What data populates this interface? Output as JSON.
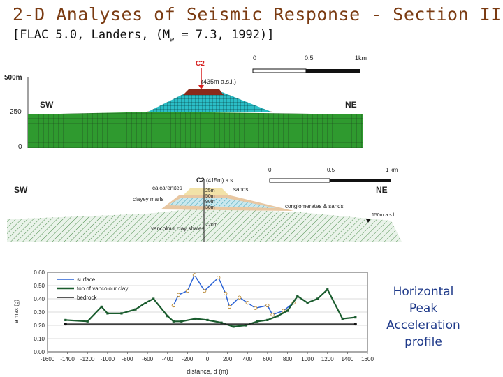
{
  "title": "2-D Analyses of Seismic Response - Section II",
  "subtitle": {
    "prefix": "[FLAC 5.0, Landers, (M",
    "sub": "w",
    "suffix": " = 7.3, 1992)]"
  },
  "section_upper": {
    "station": "C2",
    "elevation": "(435m a.s.l.)",
    "sw": "SW",
    "ne": "NE",
    "y_ticks": [
      "500m",
      "250",
      "0"
    ],
    "scale": [
      "0",
      "0.5",
      "1km"
    ]
  },
  "section_lower": {
    "station": "C2",
    "elevation": "(415m) a.s.l",
    "sw": "SW",
    "ne": "NE",
    "scale": [
      "0",
      "0.5",
      "1 km"
    ],
    "layers": [
      "calcarenites",
      "sands",
      "clayey marls",
      "conglomerates & sands",
      "vancolour clay shales"
    ],
    "depths": [
      "25m",
      "50m",
      "90m",
      "30m",
      "220m"
    ],
    "base_elevation": "150m a.s.l."
  },
  "chart_data": {
    "type": "line",
    "xlabel": "distance, d (m)",
    "ylabel": "a max (g)",
    "xlim": [
      -1600,
      1600
    ],
    "ylim": [
      0.0,
      0.6
    ],
    "x_ticks": [
      "-1600",
      "-1400",
      "-1200",
      "-1000",
      "-800",
      "-600",
      "-400",
      "-200",
      "0",
      "200",
      "400",
      "600",
      "800",
      "1000",
      "1200",
      "1400",
      "1600"
    ],
    "y_ticks": [
      "0.00",
      "0.10",
      "0.20",
      "0.30",
      "0.40",
      "0.50",
      "0.60"
    ],
    "legend_position": "top-left",
    "series": [
      {
        "name": "surface",
        "color": "#2b63d6",
        "points": [
          [
            -340,
            0.35
          ],
          [
            -290,
            0.43
          ],
          [
            -200,
            0.46
          ],
          [
            -130,
            0.58
          ],
          [
            -30,
            0.46
          ],
          [
            110,
            0.56
          ],
          [
            180,
            0.44
          ],
          [
            220,
            0.34
          ],
          [
            320,
            0.41
          ],
          [
            400,
            0.37
          ],
          [
            480,
            0.33
          ],
          [
            600,
            0.35
          ],
          [
            650,
            0.28
          ],
          [
            760,
            0.31
          ],
          [
            860,
            0.37
          ]
        ]
      },
      {
        "name": "top of vancolour clay",
        "color": "#1a5c2e",
        "points": [
          [
            -1420,
            0.24
          ],
          [
            -1200,
            0.23
          ],
          [
            -1060,
            0.34
          ],
          [
            -1000,
            0.29
          ],
          [
            -860,
            0.29
          ],
          [
            -720,
            0.32
          ],
          [
            -620,
            0.37
          ],
          [
            -540,
            0.4
          ],
          [
            -400,
            0.27
          ],
          [
            -340,
            0.23
          ],
          [
            -260,
            0.23
          ],
          [
            -120,
            0.25
          ],
          [
            0,
            0.24
          ],
          [
            140,
            0.22
          ],
          [
            260,
            0.19
          ],
          [
            380,
            0.2
          ],
          [
            500,
            0.23
          ],
          [
            600,
            0.24
          ],
          [
            700,
            0.27
          ],
          [
            800,
            0.31
          ],
          [
            900,
            0.42
          ],
          [
            1000,
            0.37
          ],
          [
            1100,
            0.4
          ],
          [
            1200,
            0.47
          ],
          [
            1350,
            0.25
          ],
          [
            1480,
            0.26
          ]
        ]
      },
      {
        "name": "bedrock",
        "color": "#222222",
        "points": [
          [
            -1420,
            0.21
          ],
          [
            1480,
            0.21
          ]
        ]
      }
    ]
  },
  "side_label": [
    "Horizontal",
    "Peak",
    "Acceleration",
    "profile"
  ]
}
